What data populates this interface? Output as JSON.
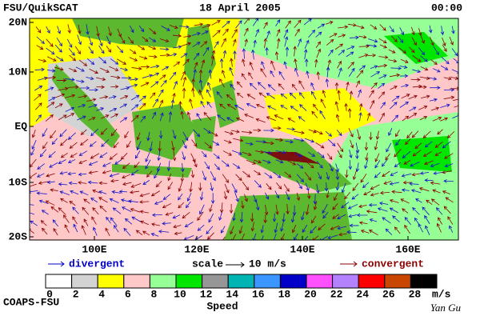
{
  "header": {
    "left": "FSU/QuikSCAT",
    "center": "18 April 2005",
    "right": "00:00"
  },
  "map": {
    "lat_labels": [
      "20N",
      "10N",
      "EQ",
      "10S",
      "20S"
    ],
    "lon_labels": [
      "100E",
      "120E",
      "140E",
      "160E"
    ]
  },
  "legend": {
    "divergent": "divergent",
    "scale": "scale",
    "scale_value": "10 m/s",
    "convergent": "convergent"
  },
  "colorbar": {
    "labels": [
      "0",
      "2",
      "4",
      "6",
      "8",
      "10",
      "12",
      "14",
      "16",
      "18",
      "20",
      "22",
      "24",
      "26",
      "28"
    ],
    "unit": "m/s",
    "title": "Speed",
    "colors": [
      "#ffffff",
      "#d3d3d3",
      "#ffff00",
      "#ffc8c8",
      "#96ff96",
      "#00e600",
      "#969696",
      "#00b4b4",
      "#3c96ff",
      "#0000c8",
      "#ff50ff",
      "#b482ff",
      "#ff0000",
      "#c84600",
      "#000000"
    ]
  },
  "footer": {
    "left": "COAPS-FSU",
    "right": "Yan Gu"
  }
}
